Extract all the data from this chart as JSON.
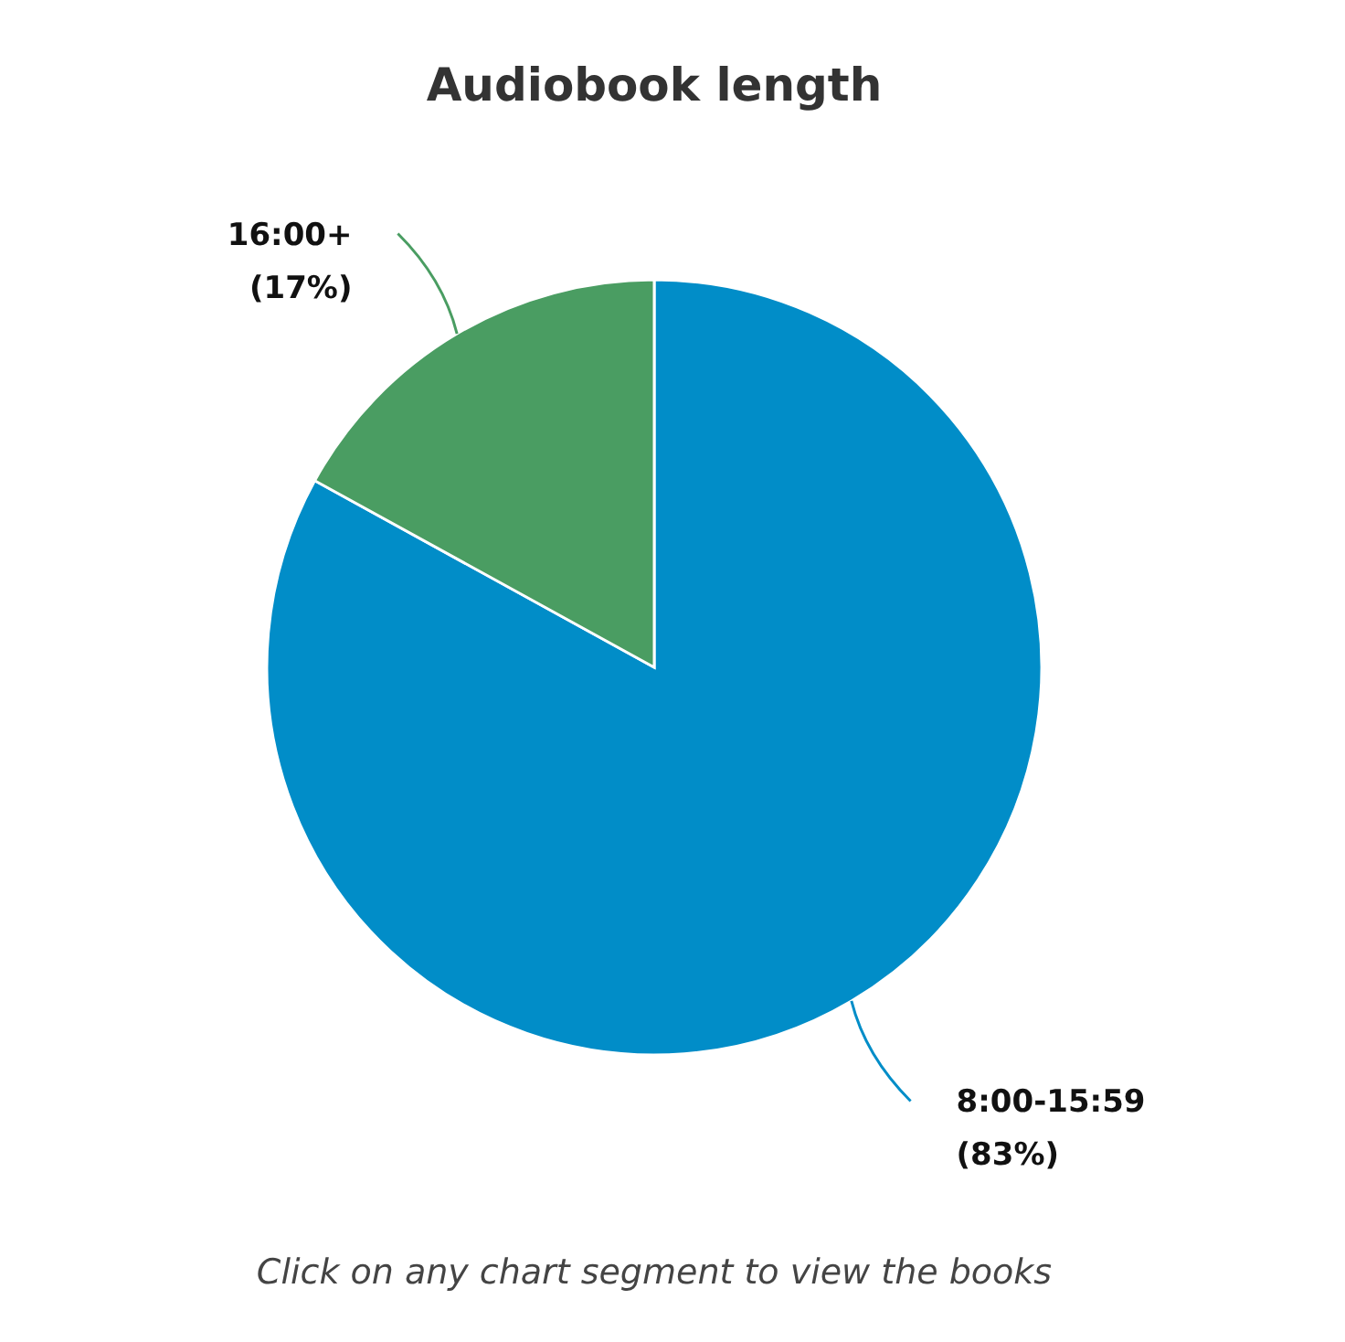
{
  "chart_data": {
    "type": "pie",
    "title": "Audiobook length",
    "categories": [
      "8:00-15:59",
      "16:00+"
    ],
    "values": [
      83,
      17
    ],
    "colors": [
      "#018dc8",
      "#4a9d62"
    ],
    "value_labels": [
      "(83%)",
      "(17%)"
    ],
    "annotations": [
      "Click on any chart segment to view the books"
    ]
  }
}
